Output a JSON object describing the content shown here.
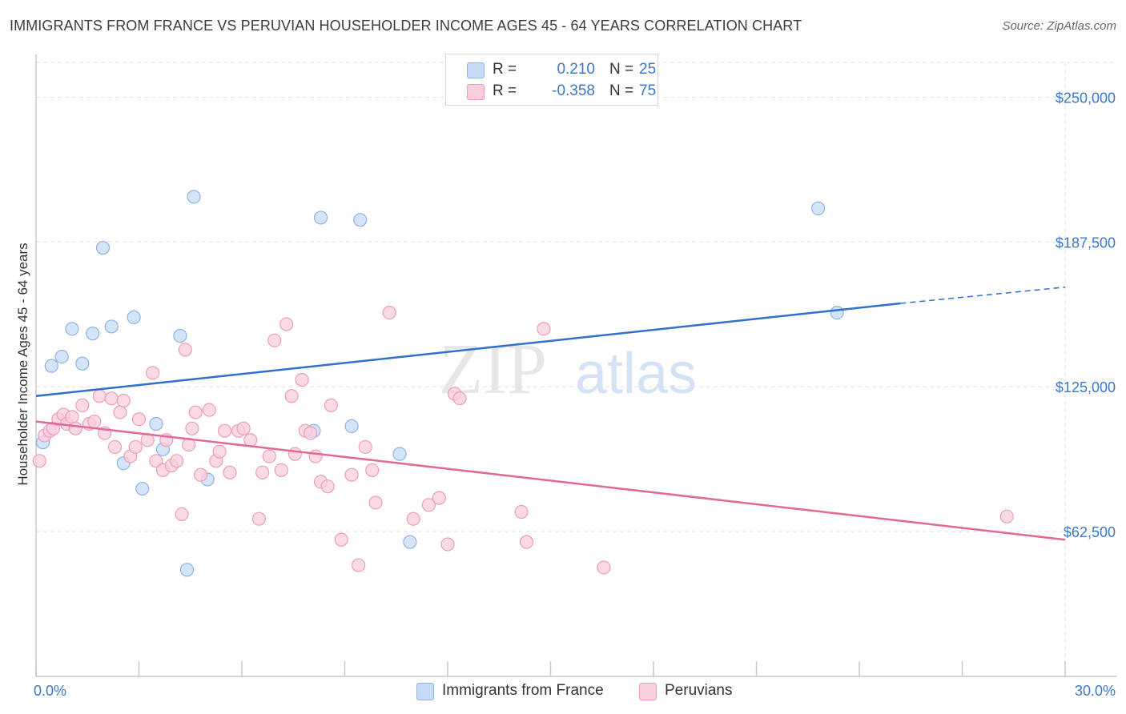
{
  "title": "IMMIGRANTS FROM FRANCE VS PERUVIAN HOUSEHOLDER INCOME AGES 45 - 64 YEARS CORRELATION CHART",
  "source": "Source: ZipAtlas.com",
  "watermark": {
    "zip": "ZIP",
    "atlas": "atlas"
  },
  "legend_top": [
    {
      "r_label": "R =",
      "r_value": "0.210",
      "n_label": "N =",
      "n_value": "25"
    },
    {
      "r_label": "R =",
      "r_value": "-0.358",
      "n_label": "N =",
      "n_value": "75"
    }
  ],
  "legend_bottom": [
    {
      "label": "Immigrants from France"
    },
    {
      "label": "Peruvians"
    }
  ],
  "colors": {
    "blue_fill": "#c6dbf7",
    "blue_stroke": "#8fb3e3",
    "blue_line": "#2f6fce",
    "pink_fill": "#f9cede",
    "pink_stroke": "#ec9db9",
    "pink_line": "#e4679a",
    "tick_label": "#3a78c9",
    "grid": "#e2e2e2"
  },
  "chart_data": {
    "type": "scatter",
    "title": "IMMIGRANTS FROM FRANCE VS PERUVIAN HOUSEHOLDER INCOME AGES 45 - 64 YEARS CORRELATION CHART",
    "xlabel": "",
    "ylabel": "Householder Income Ages 45 - 64 years",
    "xlim": [
      0,
      30
    ],
    "ylim": [
      0,
      265000
    ],
    "x_tick_labels": [
      "0.0%",
      "30.0%"
    ],
    "y_ticks": [
      62500,
      125000,
      187500,
      250000
    ],
    "y_tick_labels": [
      "$62,500",
      "$125,000",
      "$187,500",
      "$250,000"
    ],
    "grid": true,
    "series": [
      {
        "name": "Immigrants from France",
        "color": "#8fb3e3",
        "points": [
          [
            0.2,
            101000
          ],
          [
            0.45,
            134000
          ],
          [
            0.75,
            138000
          ],
          [
            1.05,
            150000
          ],
          [
            1.35,
            135000
          ],
          [
            1.65,
            148000
          ],
          [
            1.95,
            185000
          ],
          [
            2.2,
            151000
          ],
          [
            2.55,
            92000
          ],
          [
            2.85,
            155000
          ],
          [
            3.1,
            81000
          ],
          [
            3.5,
            109000
          ],
          [
            3.7,
            98000
          ],
          [
            4.2,
            147000
          ],
          [
            4.4,
            46000
          ],
          [
            4.6,
            207000
          ],
          [
            5.0,
            85000
          ],
          [
            8.1,
            106000
          ],
          [
            8.3,
            198000
          ],
          [
            9.2,
            108000
          ],
          [
            9.45,
            197000
          ],
          [
            10.6,
            96000
          ],
          [
            10.9,
            58000
          ],
          [
            22.8,
            202000
          ],
          [
            23.35,
            157000
          ]
        ],
        "trend": {
          "x": [
            0,
            25.2
          ],
          "y": [
            121000,
            161000
          ],
          "dashed_to": [
            30,
            168000
          ]
        }
      },
      {
        "name": "Peruvians",
        "color": "#ec9db9",
        "points": [
          [
            0.1,
            93000
          ],
          [
            0.25,
            104000
          ],
          [
            0.4,
            106000
          ],
          [
            0.5,
            107000
          ],
          [
            0.65,
            111000
          ],
          [
            0.8,
            113000
          ],
          [
            0.9,
            109000
          ],
          [
            1.05,
            112000
          ],
          [
            1.15,
            107000
          ],
          [
            1.35,
            117000
          ],
          [
            1.55,
            109000
          ],
          [
            1.7,
            110000
          ],
          [
            1.85,
            121000
          ],
          [
            2.0,
            105000
          ],
          [
            2.2,
            120000
          ],
          [
            2.3,
            99000
          ],
          [
            2.45,
            114000
          ],
          [
            2.55,
            119000
          ],
          [
            2.75,
            95000
          ],
          [
            2.9,
            99000
          ],
          [
            3.0,
            111000
          ],
          [
            3.25,
            102000
          ],
          [
            3.4,
            131000
          ],
          [
            3.5,
            93000
          ],
          [
            3.7,
            89000
          ],
          [
            3.8,
            102000
          ],
          [
            3.95,
            91000
          ],
          [
            4.1,
            93000
          ],
          [
            4.25,
            70000
          ],
          [
            4.35,
            141000
          ],
          [
            4.45,
            100000
          ],
          [
            4.55,
            107000
          ],
          [
            4.65,
            114000
          ],
          [
            4.8,
            87000
          ],
          [
            5.05,
            115000
          ],
          [
            5.25,
            93000
          ],
          [
            5.35,
            97000
          ],
          [
            5.5,
            106000
          ],
          [
            5.65,
            88000
          ],
          [
            5.9,
            106000
          ],
          [
            6.05,
            107000
          ],
          [
            6.25,
            102000
          ],
          [
            6.5,
            68000
          ],
          [
            6.6,
            88000
          ],
          [
            6.8,
            95000
          ],
          [
            6.95,
            145000
          ],
          [
            7.15,
            89000
          ],
          [
            7.3,
            152000
          ],
          [
            7.45,
            121000
          ],
          [
            7.55,
            96000
          ],
          [
            7.75,
            128000
          ],
          [
            7.85,
            106000
          ],
          [
            8.0,
            105000
          ],
          [
            8.15,
            95000
          ],
          [
            8.3,
            84000
          ],
          [
            8.5,
            82000
          ],
          [
            8.6,
            117000
          ],
          [
            8.9,
            59000
          ],
          [
            9.2,
            87000
          ],
          [
            9.4,
            48000
          ],
          [
            9.6,
            99000
          ],
          [
            9.8,
            89000
          ],
          [
            9.9,
            75000
          ],
          [
            10.3,
            157000
          ],
          [
            11.0,
            68000
          ],
          [
            11.45,
            74000
          ],
          [
            11.75,
            77000
          ],
          [
            12.0,
            57000
          ],
          [
            12.2,
            122000
          ],
          [
            12.35,
            120000
          ],
          [
            14.15,
            71000
          ],
          [
            14.3,
            58000
          ],
          [
            14.8,
            150000
          ],
          [
            16.55,
            47000
          ],
          [
            28.3,
            69000
          ]
        ],
        "trend": {
          "x": [
            0,
            30
          ],
          "y": [
            110000,
            59000
          ]
        }
      }
    ]
  }
}
